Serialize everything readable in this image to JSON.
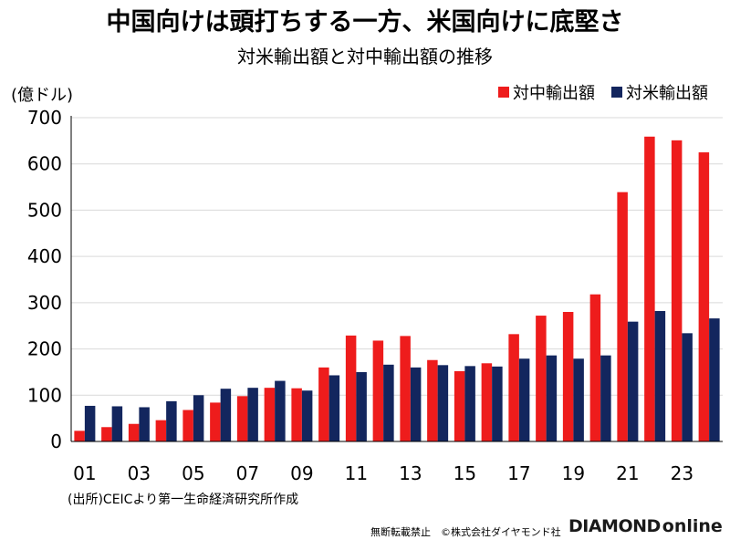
{
  "header": {
    "title": "中国向けは頭打ちする一方、米国向けに底堅さ",
    "subtitle": "対米輸出額と対中輸出額の推移",
    "unit": "(億ドル)"
  },
  "footer": {
    "source": "(出所)CEICより第一生命経済研究所作成",
    "copyright": "無断転載禁止　©株式会社ダイヤモンド社",
    "logo_bold": "DIAMOND",
    "logo_light": "online"
  },
  "colors": {
    "china": "#ee1c1c",
    "us": "#13265e",
    "grid": "#d9d9d9",
    "axis": "#000000"
  },
  "chart_data": {
    "type": "bar",
    "title": "対米輸出額と対中輸出額の推移",
    "ylabel": "(億ドル)",
    "ylim": [
      0,
      700
    ],
    "yticks": [
      0,
      100,
      200,
      300,
      400,
      500,
      600,
      700
    ],
    "legend_position": "top-right",
    "categories": [
      "01",
      "02",
      "03",
      "04",
      "05",
      "06",
      "07",
      "08",
      "09",
      "10",
      "11",
      "12",
      "13",
      "14",
      "15",
      "16",
      "17",
      "18",
      "19",
      "20",
      "21",
      "22",
      "23",
      "24"
    ],
    "x_tick_labels": [
      "01",
      "",
      "03",
      "",
      "05",
      "",
      "07",
      "",
      "09",
      "",
      "11",
      "",
      "13",
      "",
      "15",
      "",
      "17",
      "",
      "19",
      "",
      "21",
      "",
      "23",
      ""
    ],
    "series": [
      {
        "name": "対中輸出額",
        "color": "#ee1c1c",
        "values": [
          23,
          31,
          38,
          46,
          68,
          84,
          98,
          116,
          115,
          160,
          229,
          218,
          228,
          176,
          152,
          169,
          232,
          272,
          280,
          318,
          539,
          659,
          651,
          625
        ]
      },
      {
        "name": "対米輸出額",
        "color": "#13265e",
        "values": [
          77,
          76,
          74,
          87,
          100,
          114,
          116,
          131,
          110,
          143,
          150,
          166,
          160,
          165,
          163,
          162,
          179,
          186,
          179,
          186,
          259,
          282,
          234,
          266
        ]
      }
    ]
  }
}
